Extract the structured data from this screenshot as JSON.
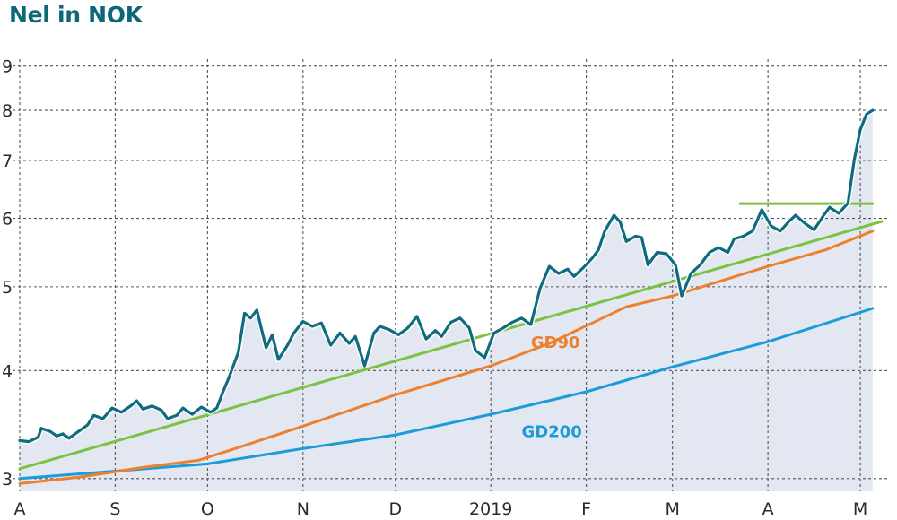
{
  "title": "Nel in NOK",
  "chart_data": {
    "type": "line",
    "title": "Nel in NOK",
    "y_scale": "log",
    "ylim": [
      2.9,
      9.3
    ],
    "yticks": [
      3,
      4,
      5,
      6,
      7,
      8,
      9
    ],
    "xlim": [
      "2018-08-01",
      "2019-05-10"
    ],
    "x_ticks": [
      {
        "date": "2018-08-01",
        "label": "A"
      },
      {
        "date": "2018-09-01",
        "label": "S"
      },
      {
        "date": "2018-10-01",
        "label": "O"
      },
      {
        "date": "2018-11-01",
        "label": "N"
      },
      {
        "date": "2018-12-01",
        "label": "D"
      },
      {
        "date": "2019-01-01",
        "label": "2019"
      },
      {
        "date": "2019-02-01",
        "label": "F"
      },
      {
        "date": "2019-03-01",
        "label": "M"
      },
      {
        "date": "2019-04-01",
        "label": "A"
      },
      {
        "date": "2019-05-01",
        "label": "M"
      }
    ],
    "grid": true,
    "series": [
      {
        "name": "",
        "role": "price",
        "color": "#0f6b7f",
        "points": [
          [
            "2018-08-01",
            3.32
          ],
          [
            "2018-08-04",
            3.31
          ],
          [
            "2018-08-07",
            3.35
          ],
          [
            "2018-08-08",
            3.43
          ],
          [
            "2018-08-11",
            3.4
          ],
          [
            "2018-08-13",
            3.36
          ],
          [
            "2018-08-15",
            3.38
          ],
          [
            "2018-08-17",
            3.34
          ],
          [
            "2018-08-20",
            3.4
          ],
          [
            "2018-08-23",
            3.46
          ],
          [
            "2018-08-25",
            3.55
          ],
          [
            "2018-08-28",
            3.52
          ],
          [
            "2018-08-31",
            3.62
          ],
          [
            "2018-09-03",
            3.58
          ],
          [
            "2018-09-06",
            3.64
          ],
          [
            "2018-09-08",
            3.69
          ],
          [
            "2018-09-10",
            3.61
          ],
          [
            "2018-09-13",
            3.64
          ],
          [
            "2018-09-16",
            3.6
          ],
          [
            "2018-09-18",
            3.52
          ],
          [
            "2018-09-21",
            3.55
          ],
          [
            "2018-09-23",
            3.62
          ],
          [
            "2018-09-26",
            3.56
          ],
          [
            "2018-09-29",
            3.63
          ],
          [
            "2018-10-02",
            3.58
          ],
          [
            "2018-10-04",
            3.62
          ],
          [
            "2018-10-06",
            3.78
          ],
          [
            "2018-10-08",
            3.93
          ],
          [
            "2018-10-11",
            4.2
          ],
          [
            "2018-10-13",
            4.66
          ],
          [
            "2018-10-15",
            4.6
          ],
          [
            "2018-10-17",
            4.7
          ],
          [
            "2018-10-20",
            4.25
          ],
          [
            "2018-10-22",
            4.4
          ],
          [
            "2018-10-24",
            4.12
          ],
          [
            "2018-10-27",
            4.28
          ],
          [
            "2018-10-29",
            4.42
          ],
          [
            "2018-11-01",
            4.56
          ],
          [
            "2018-11-04",
            4.5
          ],
          [
            "2018-11-07",
            4.54
          ],
          [
            "2018-11-10",
            4.28
          ],
          [
            "2018-11-13",
            4.42
          ],
          [
            "2018-11-16",
            4.3
          ],
          [
            "2018-11-18",
            4.38
          ],
          [
            "2018-11-21",
            4.05
          ],
          [
            "2018-11-24",
            4.42
          ],
          [
            "2018-11-26",
            4.5
          ],
          [
            "2018-11-29",
            4.46
          ],
          [
            "2018-12-02",
            4.4
          ],
          [
            "2018-12-05",
            4.48
          ],
          [
            "2018-12-08",
            4.62
          ],
          [
            "2018-12-11",
            4.35
          ],
          [
            "2018-12-14",
            4.45
          ],
          [
            "2018-12-16",
            4.38
          ],
          [
            "2018-12-19",
            4.55
          ],
          [
            "2018-12-22",
            4.6
          ],
          [
            "2018-12-25",
            4.48
          ],
          [
            "2018-12-27",
            4.22
          ],
          [
            "2018-12-30",
            4.14
          ],
          [
            "2019-01-02",
            4.42
          ],
          [
            "2019-01-05",
            4.48
          ],
          [
            "2019-01-08",
            4.55
          ],
          [
            "2019-01-11",
            4.6
          ],
          [
            "2019-01-14",
            4.52
          ],
          [
            "2019-01-17",
            4.98
          ],
          [
            "2019-01-20",
            5.28
          ],
          [
            "2019-01-23",
            5.18
          ],
          [
            "2019-01-26",
            5.24
          ],
          [
            "2019-01-28",
            5.14
          ],
          [
            "2019-01-31",
            5.26
          ],
          [
            "2019-02-03",
            5.4
          ],
          [
            "2019-02-05",
            5.52
          ],
          [
            "2019-02-07",
            5.8
          ],
          [
            "2019-02-10",
            6.05
          ],
          [
            "2019-02-12",
            5.94
          ],
          [
            "2019-02-14",
            5.64
          ],
          [
            "2019-02-17",
            5.72
          ],
          [
            "2019-02-19",
            5.7
          ],
          [
            "2019-02-21",
            5.3
          ],
          [
            "2019-02-24",
            5.48
          ],
          [
            "2019-02-27",
            5.46
          ],
          [
            "2019-03-02",
            5.3
          ],
          [
            "2019-03-04",
            4.88
          ],
          [
            "2019-03-07",
            5.18
          ],
          [
            "2019-03-10",
            5.3
          ],
          [
            "2019-03-13",
            5.48
          ],
          [
            "2019-03-16",
            5.55
          ],
          [
            "2019-03-19",
            5.48
          ],
          [
            "2019-03-21",
            5.68
          ],
          [
            "2019-03-24",
            5.72
          ],
          [
            "2019-03-27",
            5.8
          ],
          [
            "2019-03-30",
            6.14
          ],
          [
            "2019-04-02",
            5.88
          ],
          [
            "2019-04-05",
            5.8
          ],
          [
            "2019-04-08",
            5.96
          ],
          [
            "2019-04-10",
            6.05
          ],
          [
            "2019-04-13",
            5.92
          ],
          [
            "2019-04-16",
            5.82
          ],
          [
            "2019-04-19",
            6.04
          ],
          [
            "2019-04-21",
            6.18
          ],
          [
            "2019-04-24",
            6.08
          ],
          [
            "2019-04-27",
            6.25
          ],
          [
            "2019-04-29",
            7.0
          ],
          [
            "2019-05-01",
            7.6
          ],
          [
            "2019-05-03",
            7.92
          ],
          [
            "2019-05-05",
            8.0
          ]
        ]
      },
      {
        "name": "GD90",
        "color": "#ee7f2d",
        "points": [
          [
            "2018-08-01",
            2.96
          ],
          [
            "2018-08-20",
            3.01
          ],
          [
            "2018-09-10",
            3.09
          ],
          [
            "2018-09-28",
            3.15
          ],
          [
            "2018-10-10",
            3.25
          ],
          [
            "2018-11-01",
            3.45
          ],
          [
            "2018-12-01",
            3.75
          ],
          [
            "2019-01-01",
            4.05
          ],
          [
            "2019-01-20",
            4.3
          ],
          [
            "2019-02-14",
            4.74
          ],
          [
            "2019-03-01",
            4.88
          ],
          [
            "2019-04-01",
            5.28
          ],
          [
            "2019-04-20",
            5.52
          ],
          [
            "2019-05-05",
            5.8
          ]
        ]
      },
      {
        "name": "GD200",
        "color": "#1b9bd7",
        "points": [
          [
            "2018-08-01",
            3.0
          ],
          [
            "2018-09-01",
            3.06
          ],
          [
            "2018-10-01",
            3.12
          ],
          [
            "2018-11-01",
            3.25
          ],
          [
            "2018-12-01",
            3.37
          ],
          [
            "2019-01-01",
            3.56
          ],
          [
            "2019-02-01",
            3.78
          ],
          [
            "2019-03-01",
            4.04
          ],
          [
            "2019-04-01",
            4.32
          ],
          [
            "2019-05-05",
            4.72
          ]
        ]
      },
      {
        "name": "",
        "role": "trendline",
        "color": "#7cc242",
        "points": [
          [
            "2018-08-01",
            3.08
          ],
          [
            "2019-05-08",
            5.95
          ]
        ]
      },
      {
        "name": "",
        "role": "resistance",
        "color": "#7cc242",
        "points": [
          [
            "2019-03-23",
            6.24
          ],
          [
            "2019-05-05",
            6.24
          ]
        ]
      }
    ],
    "area_fill_color": "#e2e7f1",
    "series_labels": [
      {
        "text": "GD90",
        "date": "2019-01-14",
        "value": 4.25,
        "color": "#ee7f2d"
      },
      {
        "text": "GD200",
        "date": "2019-01-11",
        "value": 3.35,
        "color": "#1b9bd7"
      }
    ]
  }
}
